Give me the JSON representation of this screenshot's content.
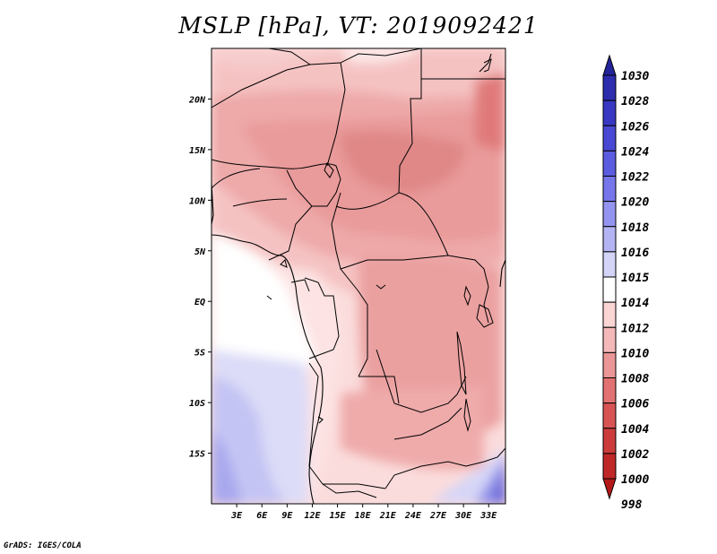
{
  "title": "MSLP [hPa], VT: 2019092421",
  "credit": "GrADS: IGES/COLA",
  "map": {
    "lon_range": [
      0,
      35
    ],
    "lat_range": [
      -20,
      25
    ],
    "lat_labels": [
      "20N",
      "15N",
      "10N",
      "5N",
      "EQ",
      "5S",
      "10S",
      "15S"
    ],
    "lat_values": [
      20,
      15,
      10,
      5,
      0,
      -5,
      -10,
      -15
    ],
    "lon_labels": [
      "3E",
      "6E",
      "9E",
      "12E",
      "15E",
      "18E",
      "21E",
      "24E",
      "27E",
      "30E",
      "33E"
    ],
    "lon_values": [
      3,
      6,
      9,
      12,
      15,
      18,
      21,
      24,
      27,
      30,
      33
    ]
  },
  "colorbar": {
    "labels": [
      "1030",
      "1028",
      "1026",
      "1024",
      "1022",
      "1020",
      "1018",
      "1016",
      "1015",
      "1014",
      "1012",
      "1010",
      "1008",
      "1006",
      "1004",
      "1002",
      "1000",
      "998"
    ],
    "colors": [
      "#24249a",
      "#2d2dae",
      "#3838c2",
      "#4848d4",
      "#5c5ce0",
      "#7676ea",
      "#9494f0",
      "#b4b4f4",
      "#d4d4f8",
      "#ffffff",
      "#fbd4d4",
      "#f5b8b8",
      "#eb9696",
      "#e27272",
      "#d85454",
      "#cc3c3c",
      "#c02828",
      "#b41818"
    ]
  }
}
